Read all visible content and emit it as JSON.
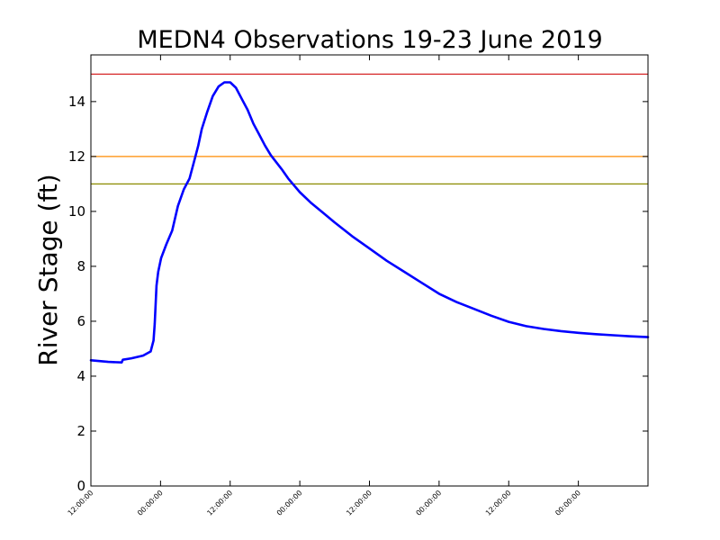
{
  "chart_data": {
    "type": "line",
    "title": "MEDN4 Observations 19-23 June 2019",
    "xlabel": "",
    "ylabel": "River Stage (ft)",
    "xlim": [
      0,
      96
    ],
    "ylim": [
      0,
      15.7
    ],
    "x_tick_labels": [
      "12:00:00",
      "00:00:00",
      "12:00:00",
      "00:00:00",
      "12:00:00",
      "00:00:00",
      "12:00:00",
      "00:00:00"
    ],
    "x_tick_hours": [
      0,
      12,
      24,
      36,
      48,
      60,
      72,
      84
    ],
    "y_ticks": [
      0,
      2,
      4,
      6,
      8,
      10,
      12,
      14
    ],
    "threshold_lines": [
      {
        "value": 15.0,
        "color": "#d62728"
      },
      {
        "value": 12.0,
        "color": "#ff8c00"
      },
      {
        "value": 11.0,
        "color": "#8b8b00"
      }
    ],
    "series": [
      {
        "color": "#0000ff",
        "x": [
          0,
          3,
          5.3,
          5.5,
          7,
          9,
          10.3,
          10.8,
          11.0,
          11.3,
          11.6,
          12.1,
          13,
          14,
          15,
          16,
          17,
          18,
          18.5,
          19.1,
          20,
          21,
          22,
          23,
          24,
          25,
          26,
          27,
          28,
          29,
          30,
          31,
          33,
          34,
          36,
          38,
          40,
          42,
          45,
          48,
          51,
          54,
          57,
          60,
          63,
          66,
          69,
          72,
          75,
          78,
          81,
          84,
          87,
          90,
          93,
          96
        ],
        "y": [
          4.58,
          4.52,
          4.5,
          4.6,
          4.65,
          4.75,
          4.9,
          5.3,
          5.9,
          7.3,
          7.8,
          8.3,
          8.8,
          9.3,
          10.2,
          10.8,
          11.2,
          12.0,
          12.4,
          13.0,
          13.6,
          14.2,
          14.55,
          14.7,
          14.7,
          14.5,
          14.1,
          13.7,
          13.2,
          12.8,
          12.4,
          12.05,
          11.5,
          11.2,
          10.7,
          10.3,
          9.95,
          9.6,
          9.1,
          8.65,
          8.2,
          7.8,
          7.4,
          7.0,
          6.7,
          6.45,
          6.2,
          5.98,
          5.82,
          5.72,
          5.64,
          5.58,
          5.53,
          5.49,
          5.45,
          5.42
        ]
      }
    ]
  }
}
